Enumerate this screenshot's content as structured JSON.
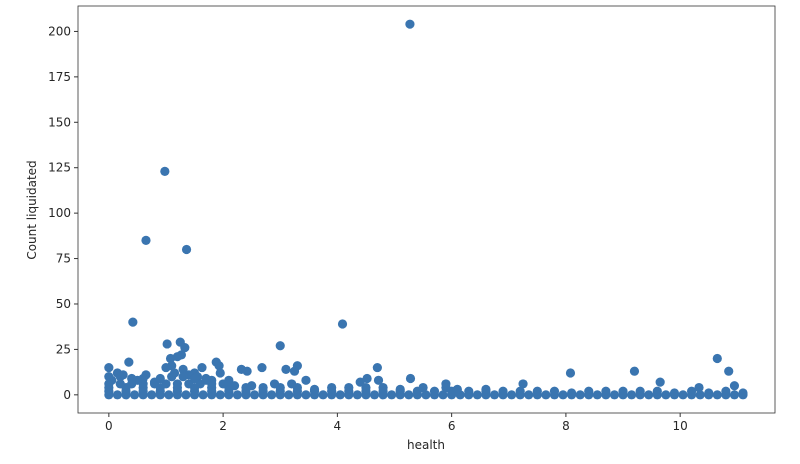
{
  "chart_data": {
    "type": "scatter",
    "title": "",
    "xlabel": "health",
    "ylabel": "Count liquidated",
    "xlim": [
      -0.54,
      11.66
    ],
    "ylim": [
      -10,
      214
    ],
    "xticks": [
      0,
      2,
      4,
      6,
      8,
      10
    ],
    "yticks": [
      0,
      25,
      50,
      75,
      100,
      125,
      150,
      175,
      200
    ],
    "grid": false,
    "color": "#3a75b0",
    "points": [
      [
        5.27,
        204
      ],
      [
        0.98,
        123
      ],
      [
        0.65,
        85
      ],
      [
        1.36,
        80
      ],
      [
        0.42,
        40
      ],
      [
        4.09,
        39
      ],
      [
        1.25,
        29
      ],
      [
        1.02,
        28
      ],
      [
        3.0,
        27
      ],
      [
        1.33,
        26
      ],
      [
        1.27,
        22
      ],
      [
        1.2,
        21
      ],
      [
        1.08,
        20
      ],
      [
        10.65,
        20
      ],
      [
        0.35,
        18
      ],
      [
        1.88,
        18
      ],
      [
        1.93,
        16
      ],
      [
        0.0,
        15
      ],
      [
        1.63,
        15
      ],
      [
        2.68,
        15
      ],
      [
        4.7,
        15
      ],
      [
        1.0,
        15
      ],
      [
        3.3,
        16
      ],
      [
        3.1,
        14
      ],
      [
        3.25,
        13
      ],
      [
        2.32,
        14
      ],
      [
        2.42,
        13
      ],
      [
        9.2,
        13
      ],
      [
        10.85,
        13
      ],
      [
        8.08,
        12
      ],
      [
        0.65,
        11
      ],
      [
        0.15,
        12
      ],
      [
        0.25,
        11
      ],
      [
        1.5,
        12
      ],
      [
        1.55,
        10
      ],
      [
        1.95,
        12
      ],
      [
        2.1,
        8
      ],
      [
        3.45,
        8
      ],
      [
        4.52,
        9
      ],
      [
        4.72,
        8
      ],
      [
        5.28,
        9
      ],
      [
        4.4,
        7
      ],
      [
        7.25,
        6
      ],
      [
        9.65,
        7
      ],
      [
        5.9,
        6
      ],
      [
        10.95,
        5
      ],
      [
        10.33,
        4
      ],
      [
        0.05,
        8
      ],
      [
        0.5,
        8
      ],
      [
        0.8,
        7
      ],
      [
        1.7,
        9
      ],
      [
        1.8,
        8
      ],
      [
        1.1,
        16
      ],
      [
        1.3,
        14
      ],
      [
        1.4,
        11
      ],
      [
        1.15,
        12
      ],
      [
        0,
        0
      ],
      [
        0.15,
        0
      ],
      [
        0.3,
        0
      ],
      [
        0.45,
        0
      ],
      [
        0.6,
        0
      ],
      [
        0.75,
        0
      ],
      [
        0.9,
        0
      ],
      [
        1.05,
        0
      ],
      [
        1.2,
        0
      ],
      [
        1.35,
        0
      ],
      [
        1.5,
        0
      ],
      [
        1.65,
        0
      ],
      [
        1.8,
        0
      ],
      [
        1.95,
        0
      ],
      [
        2.1,
        0
      ],
      [
        2.25,
        0
      ],
      [
        2.4,
        0
      ],
      [
        2.55,
        0
      ],
      [
        2.7,
        0
      ],
      [
        2.85,
        0
      ],
      [
        3,
        0
      ],
      [
        3.15,
        0
      ],
      [
        3.3,
        0
      ],
      [
        3.45,
        0
      ],
      [
        3.6,
        0
      ],
      [
        3.75,
        0
      ],
      [
        3.9,
        0
      ],
      [
        4.05,
        0
      ],
      [
        4.2,
        0
      ],
      [
        4.35,
        0
      ],
      [
        4.5,
        0
      ],
      [
        4.65,
        0
      ],
      [
        4.8,
        0
      ],
      [
        4.95,
        0
      ],
      [
        5.1,
        0
      ],
      [
        5.25,
        0
      ],
      [
        5.4,
        0
      ],
      [
        5.55,
        0
      ],
      [
        5.7,
        0
      ],
      [
        5.85,
        0
      ],
      [
        6,
        0
      ],
      [
        6.15,
        0
      ],
      [
        6.3,
        0
      ],
      [
        6.45,
        0
      ],
      [
        6.6,
        0
      ],
      [
        6.75,
        0
      ],
      [
        6.9,
        0
      ],
      [
        7.05,
        0
      ],
      [
        7.2,
        0
      ],
      [
        7.35,
        0
      ],
      [
        7.5,
        0
      ],
      [
        7.65,
        0
      ],
      [
        7.8,
        0
      ],
      [
        7.95,
        0
      ],
      [
        8.1,
        0
      ],
      [
        8.25,
        0
      ],
      [
        8.4,
        0
      ],
      [
        8.55,
        0
      ],
      [
        8.7,
        0
      ],
      [
        8.85,
        0
      ],
      [
        9,
        0
      ],
      [
        9.15,
        0
      ],
      [
        9.3,
        0
      ],
      [
        9.45,
        0
      ],
      [
        9.6,
        0
      ],
      [
        9.75,
        0
      ],
      [
        9.9,
        0
      ],
      [
        10.05,
        0
      ],
      [
        10.2,
        0
      ],
      [
        10.35,
        0
      ],
      [
        10.5,
        0
      ],
      [
        10.65,
        0
      ],
      [
        10.8,
        0
      ],
      [
        10.95,
        0
      ],
      [
        11.1,
        0
      ],
      [
        0,
        2
      ],
      [
        0.3,
        2
      ],
      [
        0.6,
        2
      ],
      [
        0.9,
        2
      ],
      [
        1.2,
        2
      ],
      [
        1.5,
        2
      ],
      [
        1.8,
        2
      ],
      [
        2.1,
        2
      ],
      [
        2.4,
        2
      ],
      [
        2.7,
        2
      ],
      [
        3,
        2
      ],
      [
        3.3,
        2
      ],
      [
        3.6,
        2
      ],
      [
        3.9,
        2
      ],
      [
        4.2,
        2
      ],
      [
        4.5,
        2
      ],
      [
        4.8,
        2
      ],
      [
        5.1,
        2
      ],
      [
        5.4,
        2
      ],
      [
        5.7,
        2
      ],
      [
        6,
        2
      ],
      [
        6.3,
        2
      ],
      [
        6.6,
        2
      ],
      [
        6.9,
        2
      ],
      [
        7.2,
        2
      ],
      [
        7.5,
        2
      ],
      [
        7.8,
        2
      ],
      [
        8.1,
        1
      ],
      [
        8.4,
        2
      ],
      [
        8.7,
        2
      ],
      [
        9,
        2
      ],
      [
        9.3,
        2
      ],
      [
        9.6,
        2
      ],
      [
        9.9,
        1
      ],
      [
        10.2,
        2
      ],
      [
        10.5,
        1
      ],
      [
        10.8,
        2
      ],
      [
        11.1,
        1
      ],
      [
        0,
        4
      ],
      [
        0.3,
        4
      ],
      [
        0.6,
        4
      ],
      [
        0.9,
        4
      ],
      [
        1.2,
        4
      ],
      [
        1.5,
        4
      ],
      [
        1.8,
        4
      ],
      [
        2.1,
        4
      ],
      [
        2.4,
        4
      ],
      [
        2.7,
        4
      ],
      [
        3,
        4
      ],
      [
        3.3,
        4
      ],
      [
        3.6,
        3
      ],
      [
        3.9,
        4
      ],
      [
        4.2,
        4
      ],
      [
        4.5,
        4
      ],
      [
        4.8,
        4
      ],
      [
        5.1,
        3
      ],
      [
        5.5,
        4
      ],
      [
        5.9,
        4
      ],
      [
        6.1,
        3
      ],
      [
        6.6,
        3
      ],
      [
        0,
        6
      ],
      [
        0.2,
        6
      ],
      [
        0.4,
        6
      ],
      [
        0.6,
        6
      ],
      [
        0.8,
        6
      ],
      [
        1.0,
        6
      ],
      [
        1.2,
        6
      ],
      [
        1.4,
        6
      ],
      [
        1.6,
        6
      ],
      [
        1.8,
        6
      ],
      [
        2.0,
        6
      ],
      [
        2.2,
        5
      ],
      [
        2.5,
        5
      ],
      [
        2.9,
        6
      ],
      [
        3.2,
        6
      ],
      [
        0,
        10
      ],
      [
        0.2,
        10
      ],
      [
        0.4,
        9
      ],
      [
        0.6,
        9
      ],
      [
        0.9,
        9
      ],
      [
        1.1,
        10
      ],
      [
        1.3,
        10
      ],
      [
        1.5,
        9
      ],
      [
        1.7,
        8
      ]
    ]
  }
}
